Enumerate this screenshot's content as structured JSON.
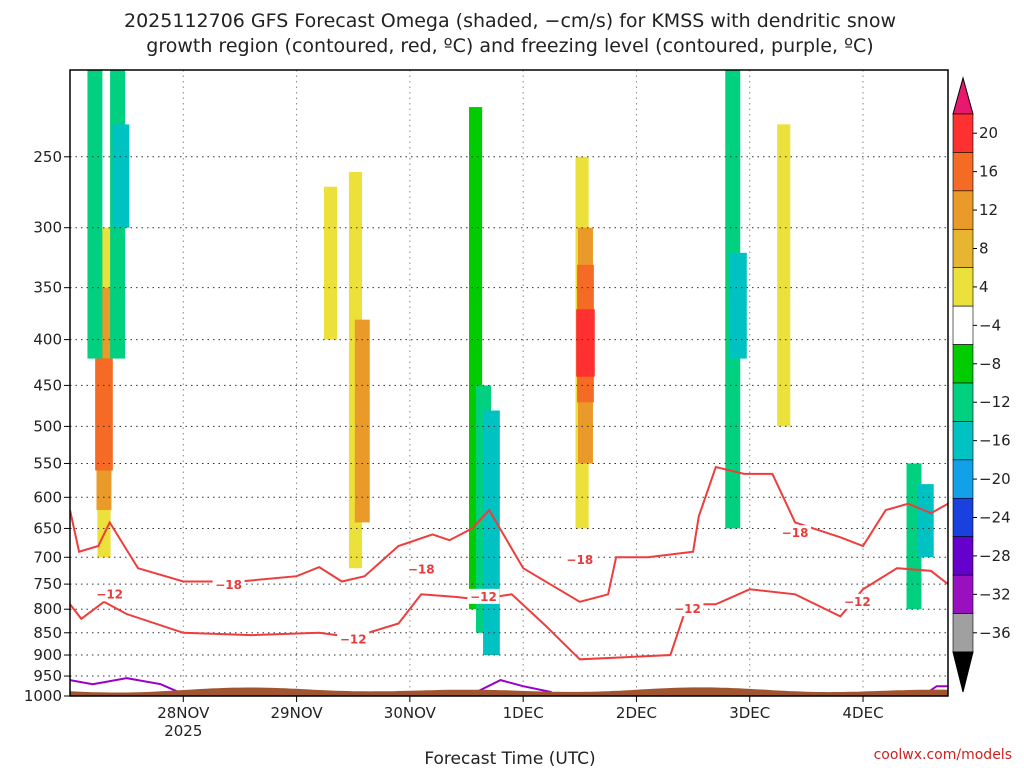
{
  "chart_data": {
    "type": "heatmap",
    "title_line1": "2025112706 GFS Forecast Omega (shaded, −cm/s) for KMSS with dendritic snow",
    "title_line2": "growth region (contoured, red, ºC) and freezing level (contoured, purple, ºC)",
    "xlabel": "Forecast Time (UTC)",
    "ylabel": "",
    "credit": "coolwx.com/models",
    "x_range": [
      "2025-11-27T06",
      "2025-12-04T18"
    ],
    "y_range": [
      1000,
      200
    ],
    "y_scale": "log-pressure",
    "x_ticks": [
      {
        "label": "28NOV",
        "sub": "2025",
        "day": 1
      },
      {
        "label": "29NOV",
        "sub": "",
        "day": 2
      },
      {
        "label": "30NOV",
        "sub": "",
        "day": 3
      },
      {
        "label": "1DEC",
        "sub": "",
        "day": 4
      },
      {
        "label": "2DEC",
        "sub": "",
        "day": 5
      },
      {
        "label": "3DEC",
        "sub": "",
        "day": 6
      },
      {
        "label": "4DEC",
        "sub": "",
        "day": 7
      }
    ],
    "y_ticks": [
      250,
      300,
      350,
      400,
      450,
      500,
      550,
      600,
      650,
      700,
      750,
      800,
      850,
      900,
      950,
      1000
    ],
    "grid": true,
    "colorbar": {
      "labels": [
        "20",
        "16",
        "12",
        "8",
        "4",
        "−4",
        "−8",
        "−12",
        "−16",
        "−20",
        "−24",
        "−28",
        "−32",
        "−36"
      ],
      "colors": [
        "#e8186e",
        "#ff3030",
        "#f56a25",
        "#e99a28",
        "#e8b531",
        "#ece03a",
        "#ffffff",
        "#00cc00",
        "#00d080",
        "#00c2c2",
        "#12a0e8",
        "#1a40e0",
        "#6600cc",
        "#9910c0",
        "#a0a0a0",
        "#000000"
      ]
    },
    "omega_cells": [
      {
        "t": 0.3,
        "p1": 560,
        "p2": 420,
        "v": 14
      },
      {
        "t": 0.3,
        "p1": 620,
        "p2": 350,
        "v": 8
      },
      {
        "t": 0.3,
        "p1": 700,
        "p2": 300,
        "v": 4
      },
      {
        "t": 0.22,
        "p1": 420,
        "p2": 200,
        "v": -8
      },
      {
        "t": 0.42,
        "p1": 420,
        "p2": 200,
        "v": -8
      },
      {
        "t": 0.45,
        "p1": 300,
        "p2": 230,
        "v": -12
      },
      {
        "t": 2.58,
        "p1": 640,
        "p2": 380,
        "v": 8
      },
      {
        "t": 2.52,
        "p1": 720,
        "p2": 260,
        "v": 4
      },
      {
        "t": 2.3,
        "p1": 400,
        "p2": 270,
        "v": 4
      },
      {
        "t": 3.65,
        "p1": 850,
        "p2": 450,
        "v": -8
      },
      {
        "t": 3.72,
        "p1": 900,
        "p2": 480,
        "v": -12
      },
      {
        "t": 3.58,
        "p1": 800,
        "p2": 220,
        "v": -4
      },
      {
        "t": 4.55,
        "p1": 550,
        "p2": 300,
        "v": 8
      },
      {
        "t": 4.55,
        "p1": 470,
        "p2": 330,
        "v": 12
      },
      {
        "t": 4.55,
        "p1": 440,
        "p2": 370,
        "v": 16
      },
      {
        "t": 4.52,
        "p1": 650,
        "p2": 250,
        "v": 4
      },
      {
        "t": 5.85,
        "p1": 650,
        "p2": 200,
        "v": -8
      },
      {
        "t": 5.9,
        "p1": 420,
        "p2": 320,
        "v": -12
      },
      {
        "t": 6.3,
        "p1": 500,
        "p2": 230,
        "v": 4
      },
      {
        "t": 7.45,
        "p1": 800,
        "p2": 550,
        "v": -8
      },
      {
        "t": 7.55,
        "p1": 700,
        "p2": 580,
        "v": -12
      }
    ],
    "contour_minus18": {
      "label": "−18",
      "points": [
        [
          0.0,
          620
        ],
        [
          0.08,
          690
        ],
        [
          0.25,
          680
        ],
        [
          0.35,
          640
        ],
        [
          0.6,
          720
        ],
        [
          1.0,
          745
        ],
        [
          1.5,
          745
        ],
        [
          2.0,
          735
        ],
        [
          2.2,
          718
        ],
        [
          2.4,
          745
        ],
        [
          2.6,
          735
        ],
        [
          2.9,
          680
        ],
        [
          3.2,
          660
        ],
        [
          3.35,
          670
        ],
        [
          3.55,
          650
        ],
        [
          3.7,
          620
        ],
        [
          4.0,
          720
        ],
        [
          4.5,
          785
        ],
        [
          4.75,
          770
        ],
        [
          4.82,
          700
        ],
        [
          5.1,
          700
        ],
        [
          5.5,
          690
        ],
        [
          5.55,
          630
        ],
        [
          5.7,
          555
        ],
        [
          5.95,
          565
        ],
        [
          6.2,
          565
        ],
        [
          6.4,
          640
        ],
        [
          6.8,
          665
        ],
        [
          7.0,
          680
        ],
        [
          7.2,
          620
        ],
        [
          7.4,
          610
        ],
        [
          7.6,
          625
        ],
        [
          7.75,
          610
        ]
      ]
    },
    "contour_minus12": {
      "label": "−12",
      "points": [
        [
          0.0,
          790
        ],
        [
          0.1,
          820
        ],
        [
          0.3,
          785
        ],
        [
          0.5,
          810
        ],
        [
          1.0,
          850
        ],
        [
          1.6,
          855
        ],
        [
          2.2,
          850
        ],
        [
          2.5,
          860
        ],
        [
          2.9,
          830
        ],
        [
          3.1,
          770
        ],
        [
          3.4,
          775
        ],
        [
          3.6,
          780
        ],
        [
          3.9,
          770
        ],
        [
          4.2,
          835
        ],
        [
          4.5,
          910
        ],
        [
          4.9,
          905
        ],
        [
          5.3,
          900
        ],
        [
          5.45,
          790
        ],
        [
          5.7,
          790
        ],
        [
          6.0,
          760
        ],
        [
          6.4,
          770
        ],
        [
          6.8,
          815
        ],
        [
          7.0,
          760
        ],
        [
          7.3,
          720
        ],
        [
          7.6,
          725
        ],
        [
          7.75,
          750
        ]
      ]
    },
    "contour_freezing": {
      "label": "",
      "segments": [
        [
          [
            0.0,
            960
          ],
          [
            0.2,
            970
          ],
          [
            0.5,
            955
          ],
          [
            0.8,
            970
          ],
          [
            1.0,
            995
          ]
        ],
        [
          [
            3.55,
            995
          ],
          [
            3.8,
            960
          ],
          [
            4.0,
            975
          ],
          [
            4.25,
            990
          ]
        ],
        [
          [
            7.55,
            995
          ],
          [
            7.65,
            975
          ],
          [
            7.75,
            975
          ]
        ]
      ]
    }
  }
}
